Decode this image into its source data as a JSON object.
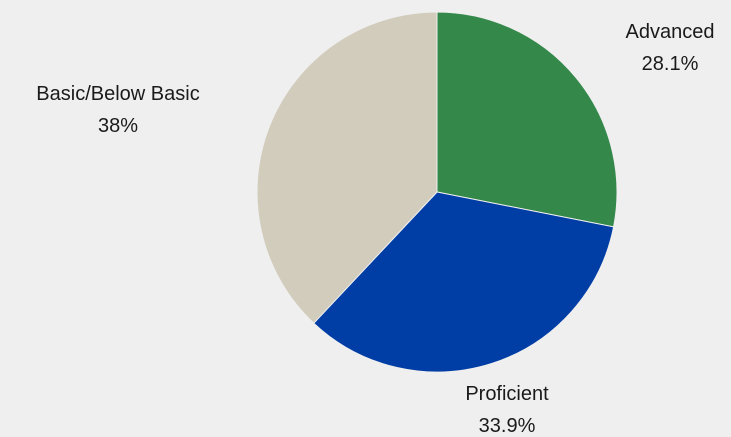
{
  "chart_data": {
    "type": "pie",
    "title": "",
    "start_angle_deg": 0,
    "direction": "clockwise",
    "slices": [
      {
        "label": "Advanced",
        "value": 28.1,
        "display": "28.1%",
        "color": "#33884a"
      },
      {
        "label": "Proficient",
        "value": 33.9,
        "display": "33.9%",
        "color": "#003da5"
      },
      {
        "label": "Basic/Below Basic",
        "value": 38.0,
        "display": "38%",
        "color": "#d2ccbc"
      }
    ]
  },
  "colors": {
    "background": "#efefef",
    "slice_border": "#efefef",
    "label_text": "#1a1a1a"
  }
}
